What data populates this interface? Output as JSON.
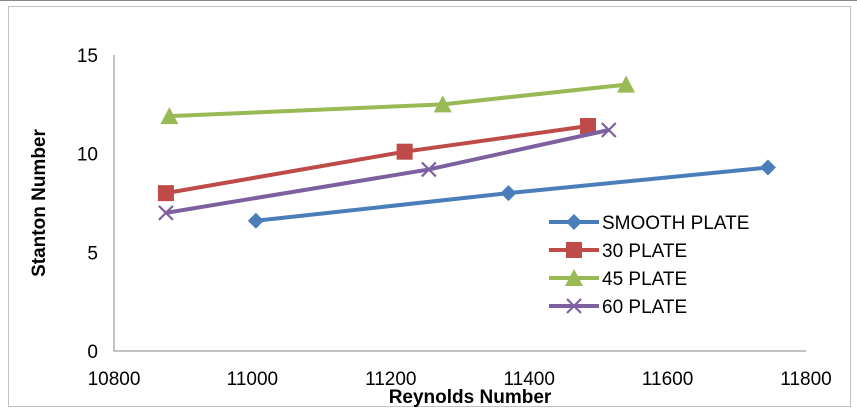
{
  "chart_data": {
    "type": "line",
    "title": "",
    "xlabel": "Reynolds Number",
    "ylabel": "Stanton Number",
    "xlim": [
      10800,
      11800
    ],
    "ylim": [
      0,
      15
    ],
    "xticks": [
      10800,
      11000,
      11200,
      11400,
      11600,
      11800
    ],
    "yticks": [
      0,
      5,
      10,
      15
    ],
    "grid": false,
    "legend_position": "right",
    "series": [
      {
        "name": "SMOOTH PLATE",
        "color": "#4a7ebb",
        "marker": "diamond",
        "x": [
          11005,
          11370,
          11745
        ],
        "y": [
          6.6,
          8.0,
          9.3
        ]
      },
      {
        "name": "30 PLATE",
        "color": "#be4b48",
        "marker": "square",
        "x": [
          10875,
          11220,
          11485
        ],
        "y": [
          8.0,
          10.1,
          11.4
        ]
      },
      {
        "name": "45 PLATE",
        "color": "#98b954",
        "marker": "triangle",
        "x": [
          10880,
          11275,
          11540
        ],
        "y": [
          11.9,
          12.5,
          13.5
        ]
      },
      {
        "name": "60 PLATE",
        "color": "#7d60a0",
        "marker": "x",
        "x": [
          10875,
          11255,
          11515
        ],
        "y": [
          7.0,
          9.2,
          11.2
        ]
      }
    ]
  }
}
